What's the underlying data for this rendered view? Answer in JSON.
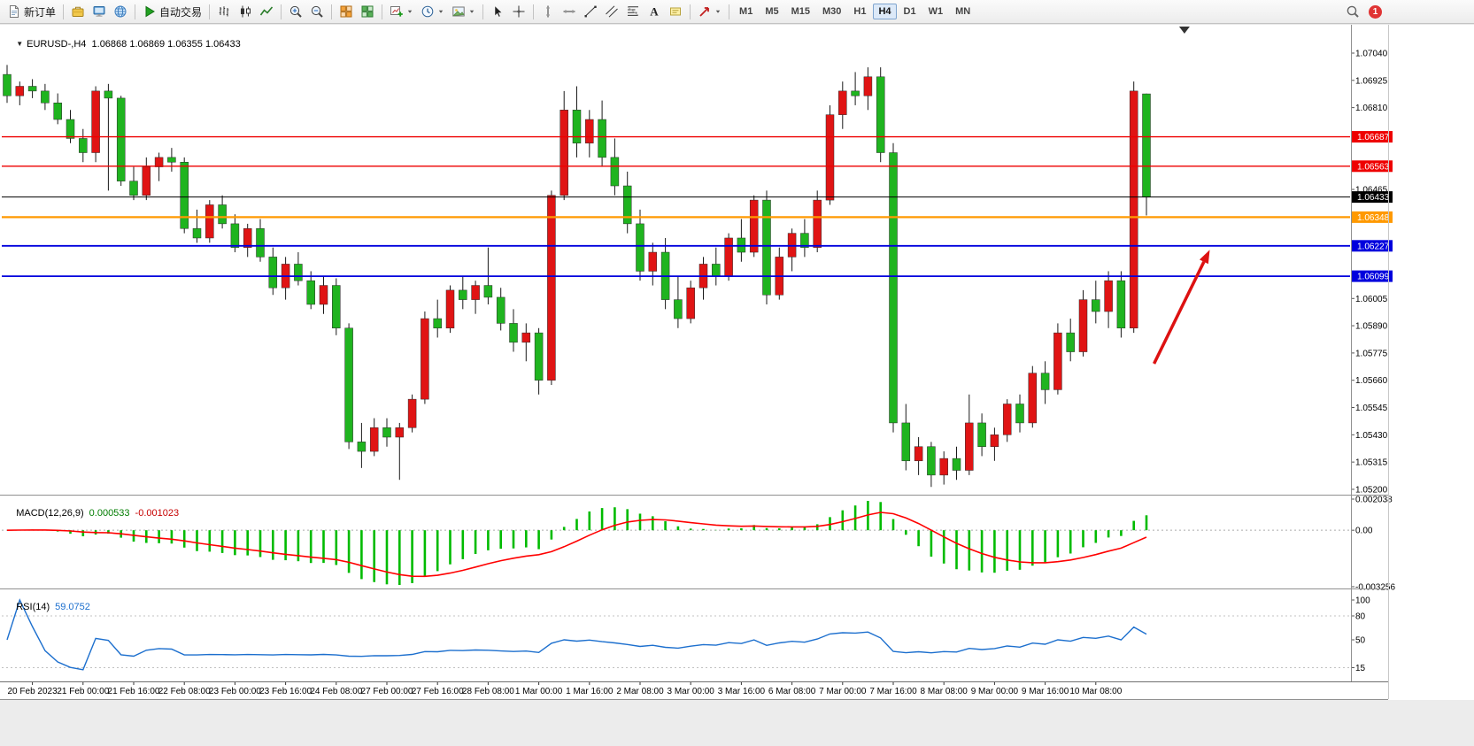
{
  "toolbar": {
    "groups": [
      {
        "items": [
          {
            "name": "new-order-button",
            "icon": "doc",
            "label": "新订单"
          }
        ]
      },
      {
        "items": [
          {
            "name": "metaeditor-button",
            "icon": "box-yellow"
          },
          {
            "name": "terminal-button",
            "icon": "monitor"
          },
          {
            "name": "community-button",
            "icon": "globe"
          }
        ]
      },
      {
        "items": [
          {
            "name": "autotrading-button",
            "icon": "play",
            "label": "自动交易"
          }
        ]
      },
      {
        "items": [
          {
            "name": "bar-chart-button",
            "icon": "bars"
          },
          {
            "name": "candlestick-chart-button",
            "icon": "candles"
          },
          {
            "name": "line-chart-button",
            "icon": "linechart"
          }
        ]
      },
      {
        "items": [
          {
            "name": "zoom-in-button",
            "icon": "zoom-in"
          },
          {
            "name": "zoom-out-button",
            "icon": "zoom-out"
          }
        ]
      },
      {
        "items": [
          {
            "name": "indicators-button",
            "icon": "grid-orange"
          },
          {
            "name": "objects-list-button",
            "icon": "grid-green"
          }
        ]
      },
      {
        "items": [
          {
            "name": "new-chart-dropdown",
            "icon": "chart-plus",
            "caret": true
          },
          {
            "name": "periods-dropdown",
            "icon": "clock",
            "caret": true
          },
          {
            "name": "templates-dropdown",
            "icon": "picture",
            "caret": true
          }
        ]
      },
      {
        "items": [
          {
            "name": "cursor-button",
            "icon": "cursor"
          },
          {
            "name": "crosshair-button",
            "icon": "crosshair"
          }
        ]
      },
      {
        "items": [
          {
            "name": "vertical-line-button",
            "icon": "vline"
          },
          {
            "name": "horizontal-line-button",
            "icon": "hline"
          },
          {
            "name": "trendline-button",
            "icon": "trendline"
          },
          {
            "name": "channel-button",
            "icon": "channel"
          },
          {
            "name": "fibonacci-button",
            "icon": "fibo"
          },
          {
            "name": "text-button",
            "icon": "text"
          },
          {
            "name": "label-button",
            "icon": "tag"
          }
        ]
      },
      {
        "items": [
          {
            "name": "arrows-dropdown",
            "icon": "shapes",
            "caret": true
          }
        ]
      }
    ],
    "timeframes": [
      "M1",
      "M5",
      "M15",
      "M30",
      "H1",
      "H4",
      "D1",
      "W1",
      "MN"
    ],
    "active_timeframe": "H4",
    "notification_count": "1"
  },
  "chart": {
    "symbol_label": "EURUSD-,H4",
    "quote_line": "1.06868 1.06869 1.06355 1.06433"
  },
  "macd_panel": {
    "title": "MACD(12,26,9)",
    "value_main": "0.000533",
    "value_signal": "-0.001023"
  },
  "rsi_panel": {
    "title": "RSI(14)",
    "value": "59.0752"
  },
  "chart_data": {
    "type": "candlestick",
    "symbol": "EURUSD",
    "timeframe": "H4",
    "up_color": "#e01414",
    "down_color": "#1fb41f",
    "wick_color": "#1a1a1a",
    "candles_ohlc": [
      [
        1.0695,
        1.0699,
        1.0683,
        1.0686
      ],
      [
        1.0686,
        1.0692,
        1.0682,
        1.069
      ],
      [
        1.069,
        1.0693,
        1.0685,
        1.0688
      ],
      [
        1.0688,
        1.0691,
        1.068,
        1.0683
      ],
      [
        1.0683,
        1.0687,
        1.0674,
        1.0676
      ],
      [
        1.0676,
        1.068,
        1.0666,
        1.0668
      ],
      [
        1.0668,
        1.0672,
        1.0658,
        1.0662
      ],
      [
        1.0662,
        1.069,
        1.0658,
        1.0688
      ],
      [
        1.0688,
        1.0691,
        1.0646,
        1.0685
      ],
      [
        1.0685,
        1.0686,
        1.0648,
        1.065
      ],
      [
        1.065,
        1.0656,
        1.0642,
        1.0644
      ],
      [
        1.0644,
        1.066,
        1.0642,
        1.0656
      ],
      [
        1.0656,
        1.0662,
        1.065,
        1.066
      ],
      [
        1.066,
        1.0664,
        1.0654,
        1.0658
      ],
      [
        1.0658,
        1.066,
        1.0628,
        1.063
      ],
      [
        1.063,
        1.0638,
        1.0624,
        1.0626
      ],
      [
        1.0626,
        1.0642,
        1.0624,
        1.064
      ],
      [
        1.064,
        1.0644,
        1.063,
        1.0632
      ],
      [
        1.0632,
        1.0636,
        1.062,
        1.0622
      ],
      [
        1.0622,
        1.0632,
        1.0618,
        1.063
      ],
      [
        1.063,
        1.0634,
        1.0616,
        1.0618
      ],
      [
        1.0618,
        1.0622,
        1.0602,
        1.0605
      ],
      [
        1.0605,
        1.0618,
        1.06,
        1.0615
      ],
      [
        1.0615,
        1.062,
        1.0606,
        1.0608
      ],
      [
        1.0608,
        1.0612,
        1.0596,
        1.0598
      ],
      [
        1.0598,
        1.061,
        1.0594,
        1.0606
      ],
      [
        1.0606,
        1.0609,
        1.0585,
        1.0588
      ],
      [
        1.0588,
        1.059,
        1.0537,
        1.054
      ],
      [
        1.054,
        1.0548,
        1.0529,
        1.0536
      ],
      [
        1.0536,
        1.055,
        1.0534,
        1.0546
      ],
      [
        1.0546,
        1.055,
        1.0538,
        1.0542
      ],
      [
        1.0542,
        1.0548,
        1.0524,
        1.0546
      ],
      [
        1.0546,
        1.056,
        1.0544,
        1.0558
      ],
      [
        1.0558,
        1.0595,
        1.0556,
        1.0592
      ],
      [
        1.0592,
        1.06,
        1.0584,
        1.0588
      ],
      [
        1.0588,
        1.0606,
        1.0586,
        1.0604
      ],
      [
        1.0604,
        1.061,
        1.0596,
        1.06
      ],
      [
        1.06,
        1.0608,
        1.0594,
        1.0606
      ],
      [
        1.0606,
        1.0622,
        1.0598,
        1.0601
      ],
      [
        1.0601,
        1.0605,
        1.0587,
        1.059
      ],
      [
        1.059,
        1.0596,
        1.0578,
        1.0582
      ],
      [
        1.0582,
        1.059,
        1.0574,
        1.0586
      ],
      [
        1.0586,
        1.0588,
        1.056,
        1.0566
      ],
      [
        1.0566,
        1.0646,
        1.0564,
        1.0644
      ],
      [
        1.0644,
        1.0688,
        1.0642,
        1.068
      ],
      [
        1.068,
        1.069,
        1.066,
        1.0666
      ],
      [
        1.0666,
        1.068,
        1.066,
        1.0676
      ],
      [
        1.0676,
        1.0684,
        1.0656,
        1.066
      ],
      [
        1.066,
        1.0668,
        1.0644,
        1.0648
      ],
      [
        1.0648,
        1.0654,
        1.0628,
        1.0632
      ],
      [
        1.0632,
        1.0638,
        1.0608,
        1.0612
      ],
      [
        1.0612,
        1.0624,
        1.0606,
        1.062
      ],
      [
        1.062,
        1.0626,
        1.0596,
        1.06
      ],
      [
        1.06,
        1.061,
        1.0588,
        1.0592
      ],
      [
        1.0592,
        1.0608,
        1.059,
        1.0605
      ],
      [
        1.0605,
        1.0618,
        1.06,
        1.0615
      ],
      [
        1.0615,
        1.0622,
        1.0606,
        1.061
      ],
      [
        1.061,
        1.0628,
        1.0608,
        1.0626
      ],
      [
        1.0626,
        1.0634,
        1.0616,
        1.062
      ],
      [
        1.062,
        1.0644,
        1.0618,
        1.0642
      ],
      [
        1.0642,
        1.0646,
        1.0598,
        1.0602
      ],
      [
        1.0602,
        1.0622,
        1.06,
        1.0618
      ],
      [
        1.0618,
        1.063,
        1.0612,
        1.0628
      ],
      [
        1.0628,
        1.0634,
        1.0618,
        1.0622
      ],
      [
        1.0622,
        1.0646,
        1.062,
        1.0642
      ],
      [
        1.0642,
        1.0682,
        1.064,
        1.0678
      ],
      [
        1.0678,
        1.0692,
        1.0672,
        1.0688
      ],
      [
        1.0688,
        1.0696,
        1.0682,
        1.0686
      ],
      [
        1.0686,
        1.0698,
        1.068,
        1.0694
      ],
      [
        1.0694,
        1.0698,
        1.0658,
        1.0662
      ],
      [
        1.0662,
        1.0666,
        1.0544,
        1.0548
      ],
      [
        1.0548,
        1.0556,
        1.0528,
        1.0532
      ],
      [
        1.0532,
        1.0542,
        1.0526,
        1.0538
      ],
      [
        1.0538,
        1.054,
        1.0521,
        1.0526
      ],
      [
        1.0526,
        1.0536,
        1.0522,
        1.0533
      ],
      [
        1.0533,
        1.0538,
        1.0524,
        1.0528
      ],
      [
        1.0528,
        1.056,
        1.0526,
        1.0548
      ],
      [
        1.0548,
        1.0552,
        1.0534,
        1.0538
      ],
      [
        1.0538,
        1.0546,
        1.0532,
        1.0543
      ],
      [
        1.0543,
        1.0558,
        1.054,
        1.0556
      ],
      [
        1.0556,
        1.056,
        1.0544,
        1.0548
      ],
      [
        1.0548,
        1.0572,
        1.0546,
        1.0569
      ],
      [
        1.0569,
        1.0574,
        1.0556,
        1.0562
      ],
      [
        1.0562,
        1.059,
        1.056,
        1.0586
      ],
      [
        1.0586,
        1.0592,
        1.0574,
        1.0578
      ],
      [
        1.0578,
        1.0604,
        1.0576,
        1.06
      ],
      [
        1.06,
        1.0608,
        1.059,
        1.0595
      ],
      [
        1.0595,
        1.0612,
        1.0588,
        1.0608
      ],
      [
        1.0608,
        1.0612,
        1.0584,
        1.0588
      ],
      [
        1.0588,
        1.0692,
        1.0586,
        1.0688
      ],
      [
        1.06868,
        1.06869,
        1.06355,
        1.06433
      ]
    ],
    "price_scale_labels": [
      "1.07040",
      "1.06925",
      "1.06810",
      "1.06465",
      "1.06005",
      "1.05890",
      "1.05775",
      "1.05660",
      "1.05545",
      "1.05430",
      "1.05315",
      "1.05200"
    ],
    "hlines": [
      {
        "name": "resistance-line-upper",
        "value": "1.06687",
        "color": "#ee0000",
        "width": 1.4
      },
      {
        "name": "resistance-line-lower",
        "value": "1.06563",
        "color": "#ee0000",
        "width": 1.4
      },
      {
        "name": "current-price-line",
        "value": "1.06433",
        "color": "#000000",
        "width": 1.1
      },
      {
        "name": "pivot-line-orange",
        "value": "1.06348",
        "color": "#ff9900",
        "width": 2.2
      },
      {
        "name": "support-line-upper",
        "value": "1.06227",
        "color": "#0000dd",
        "width": 1.8
      },
      {
        "name": "support-line-lower",
        "value": "1.06099",
        "color": "#0000dd",
        "width": 1.8
      }
    ],
    "time_labels": [
      "20 Feb 2023",
      "21 Feb 00:00",
      "21 Feb 16:00",
      "22 Feb 08:00",
      "23 Feb 00:00",
      "23 Feb 16:00",
      "24 Feb 08:00",
      "27 Feb 00:00",
      "27 Feb 16:00",
      "28 Feb 08:00",
      "1 Mar 00:00",
      "1 Mar 16:00",
      "2 Mar 08:00",
      "3 Mar 00:00",
      "3 Mar 16:00",
      "6 Mar 08:00",
      "7 Mar 00:00",
      "7 Mar 16:00",
      "8 Mar 08:00",
      "9 Mar 00:00",
      "9 Mar 16:00",
      "10 Mar 08:00"
    ],
    "indicators": {
      "macd": {
        "fast": 12,
        "slow": 26,
        "signal": 9,
        "histogram_color": "#00bb00",
        "signal_color": "#ff0000",
        "scale_labels": [
          "0.002038",
          "0.00",
          "-0.003256"
        ]
      },
      "rsi": {
        "period": 14,
        "line_color": "#1c6fce",
        "scale_labels": [
          "100",
          "80",
          "50",
          "15"
        ],
        "levels": [
          80,
          15
        ]
      }
    },
    "annotations": [
      {
        "type": "arrow",
        "name": "trend-arrow-annotation",
        "color": "#dd1111",
        "from_bar": 90.6,
        "from_price": 1.0573,
        "to_bar": 95.0,
        "to_price": 1.0621,
        "width": 3.5
      }
    ],
    "shift_marker_bar": 93
  }
}
